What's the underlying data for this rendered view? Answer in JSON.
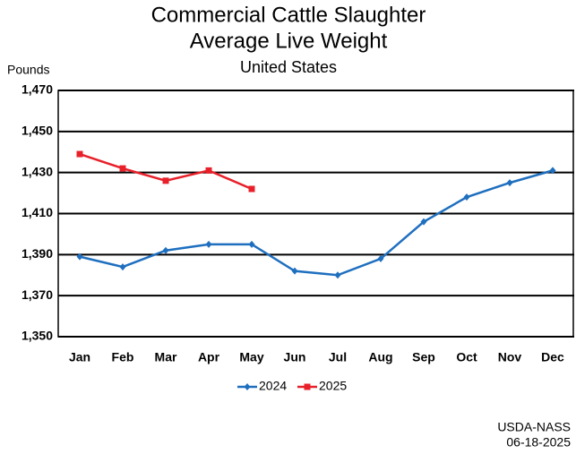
{
  "chart_data": {
    "type": "line",
    "title": "Commercial Cattle Slaughter",
    "subtitle": "Average Live Weight",
    "subtitle2": "United States",
    "y_label": "Pounds",
    "categories": [
      "Jan",
      "Feb",
      "Mar",
      "Apr",
      "May",
      "Jun",
      "Jul",
      "Aug",
      "Sep",
      "Oct",
      "Nov",
      "Dec"
    ],
    "series": [
      {
        "name": "2024",
        "color": "#1f6fbf",
        "marker": "diamond",
        "values": [
          1389,
          1384,
          1392,
          1395,
          1395,
          1382,
          1380,
          1388,
          1406,
          1418,
          1425,
          1431
        ]
      },
      {
        "name": "2025",
        "color": "#e8202a",
        "marker": "square",
        "values": [
          1439,
          1432,
          1426,
          1431,
          1422,
          null,
          null,
          null,
          null,
          null,
          null,
          null
        ]
      }
    ],
    "ylim": [
      1350,
      1470
    ],
    "yticks": [
      {
        "value": 1350,
        "label": "1,350"
      },
      {
        "value": 1370,
        "label": "1,370"
      },
      {
        "value": 1390,
        "label": "1,390"
      },
      {
        "value": 1410,
        "label": "1,410"
      },
      {
        "value": 1430,
        "label": "1,430"
      },
      {
        "value": 1450,
        "label": "1,450"
      },
      {
        "value": 1470,
        "label": "1,470"
      }
    ],
    "grid": true,
    "legend": "bottom",
    "source": "USDA-NASS",
    "date": "06-18-2025"
  }
}
